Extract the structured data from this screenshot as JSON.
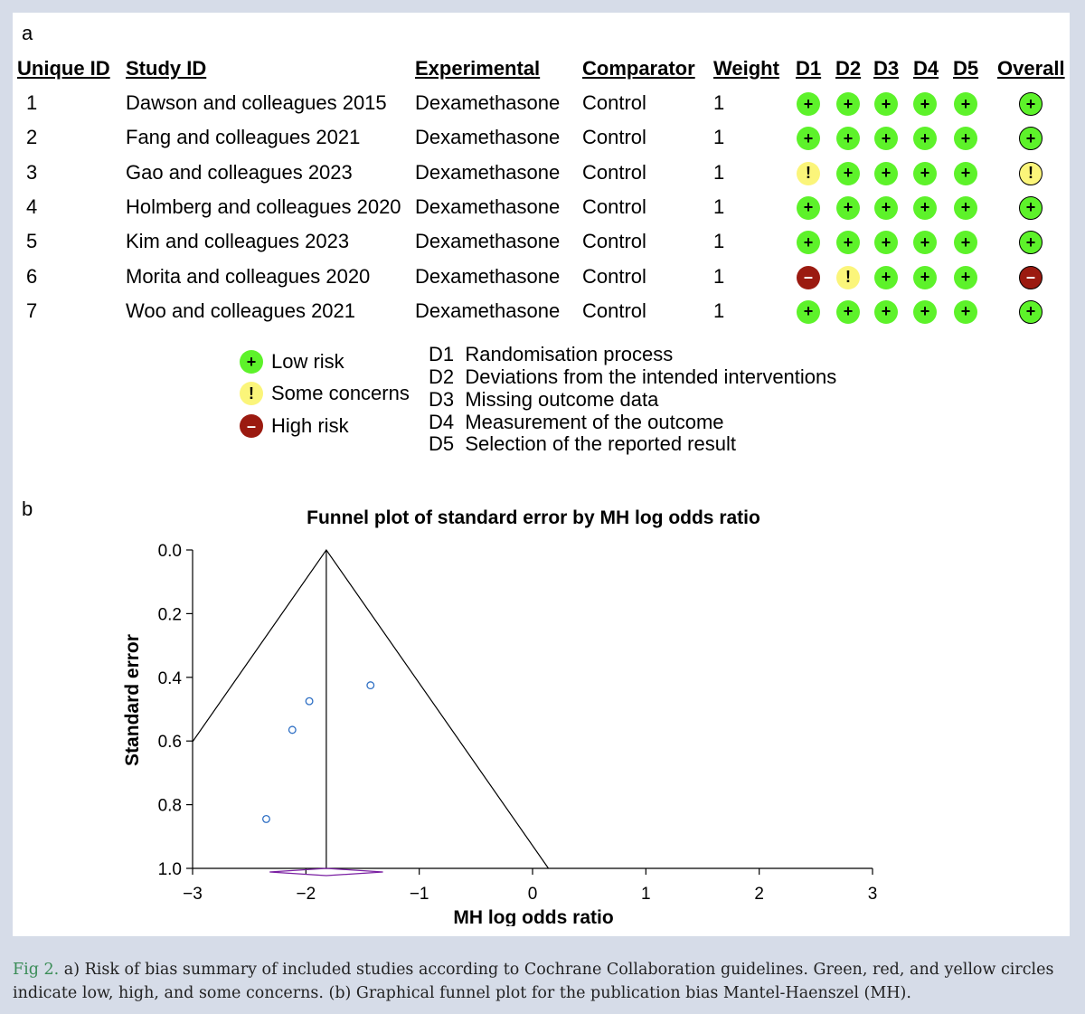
{
  "panel_a": {
    "label": "a",
    "headers": {
      "unique_id": "Unique ID",
      "study_id": "Study ID",
      "experimental": "Experimental",
      "comparator": "Comparator",
      "weight": "Weight",
      "d1": "D1",
      "d2": "D2",
      "d3": "D3",
      "d4": "D4",
      "d5": "D5",
      "overall": "Overall"
    },
    "rows": [
      {
        "id": "1",
        "study": "Dawson and colleagues 2015",
        "experimental": "Dexamethasone",
        "comparator": "Control",
        "weight": "1",
        "domains": [
          "low",
          "low",
          "low",
          "low",
          "low"
        ],
        "overall": "low"
      },
      {
        "id": "2",
        "study": "Fang and colleagues 2021",
        "experimental": "Dexamethasone",
        "comparator": "Control",
        "weight": "1",
        "domains": [
          "low",
          "low",
          "low",
          "low",
          "low"
        ],
        "overall": "low"
      },
      {
        "id": "3",
        "study": "Gao and colleagues 2023",
        "experimental": "Dexamethasone",
        "comparator": "Control",
        "weight": "1",
        "domains": [
          "some",
          "low",
          "low",
          "low",
          "low"
        ],
        "overall": "some"
      },
      {
        "id": "4",
        "study": "Holmberg and colleagues 2020",
        "experimental": "Dexamethasone",
        "comparator": "Control",
        "weight": "1",
        "domains": [
          "low",
          "low",
          "low",
          "low",
          "low"
        ],
        "overall": "low"
      },
      {
        "id": "5",
        "study": "Kim and colleagues 2023",
        "experimental": "Dexamethasone",
        "comparator": "Control",
        "weight": "1",
        "domains": [
          "low",
          "low",
          "low",
          "low",
          "low"
        ],
        "overall": "low"
      },
      {
        "id": "6",
        "study": "Morita and colleagues 2020",
        "experimental": "Dexamethasone",
        "comparator": "Control",
        "weight": "1",
        "domains": [
          "high",
          "some",
          "low",
          "low",
          "low"
        ],
        "overall": "high"
      },
      {
        "id": "7",
        "study": "Woo and colleagues 2021",
        "experimental": "Dexamethasone",
        "comparator": "Control",
        "weight": "1",
        "domains": [
          "low",
          "low",
          "low",
          "low",
          "low"
        ],
        "overall": "low"
      }
    ],
    "symbols": {
      "low": "+",
      "some": "!",
      "high": "–"
    },
    "colors": {
      "low": "#5df22a",
      "some": "#fbf57a",
      "high": "#9b1a10"
    },
    "legend": {
      "judgements": [
        {
          "key": "low",
          "label": "Low risk"
        },
        {
          "key": "some",
          "label": "Some concerns"
        },
        {
          "key": "high",
          "label": "High risk"
        }
      ],
      "domains": [
        {
          "code": "D1",
          "label": "Randomisation process"
        },
        {
          "code": "D2",
          "label": "Deviations from the intended interventions"
        },
        {
          "code": "D3",
          "label": "Missing outcome data"
        },
        {
          "code": "D4",
          "label": "Measurement of the outcome"
        },
        {
          "code": "D5",
          "label": "Selection of the reported result"
        }
      ]
    }
  },
  "panel_b": {
    "label": "b"
  },
  "chart_data": {
    "type": "scatter",
    "title": "Funnel plot of standard error by MH log odds ratio",
    "xlabel": "MH log odds ratio",
    "ylabel": "Standard error",
    "xlim": [
      -3,
      3
    ],
    "ylim": [
      0,
      1
    ],
    "y_inverted": true,
    "x_ticks": [
      "−3",
      "−2",
      "−1",
      "0",
      "1",
      "2",
      "3"
    ],
    "y_ticks": [
      "0.0",
      "0.2",
      "0.4",
      "0.6",
      "0.8",
      "1.0"
    ],
    "points": [
      {
        "x": -1.43,
        "y": 0.425
      },
      {
        "x": -1.97,
        "y": 0.475
      },
      {
        "x": -2.12,
        "y": 0.565
      },
      {
        "x": -2.35,
        "y": 0.845
      }
    ],
    "pooled_estimate": -1.82,
    "funnel_limits_multiplier": 1.96,
    "summary_diamond": {
      "center": -1.82,
      "lower": -2.32,
      "upper": -1.32
    },
    "marker_color": "#2e6fc4",
    "diamond_color": "#7a1fa2",
    "grid": false
  },
  "caption": {
    "fig_label": "Fig 2.",
    "text": " a) Risk of bias summary of included studies according to Cochrane Collaboration guidelines. Green, red, and yellow circles indicate low, high, and some concerns. (b) Graphical funnel plot for the publication bias Mantel-Haenszel (MH)."
  }
}
